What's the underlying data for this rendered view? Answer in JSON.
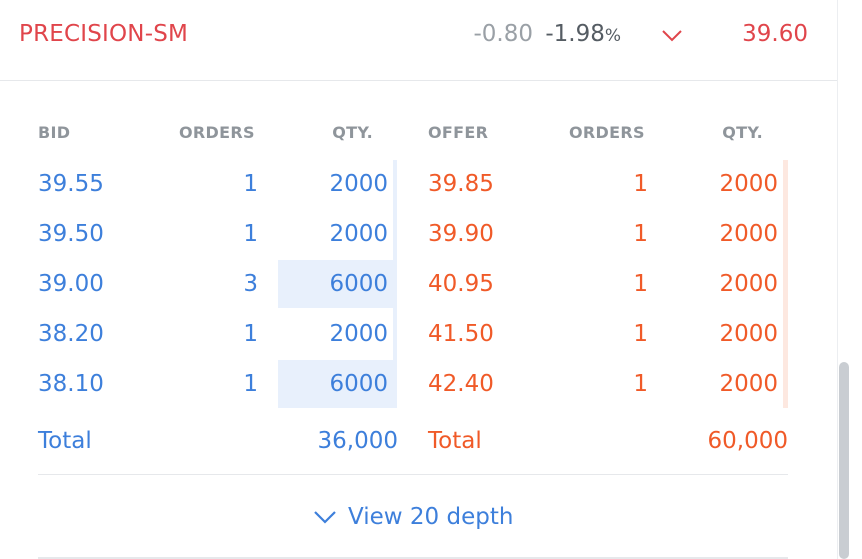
{
  "header": {
    "symbol": "PRECISION-SM",
    "change": "-0.80",
    "change_pct_value": "-1.98",
    "change_pct_unit": "%",
    "price": "39.60",
    "direction_icon": "chevron-down-icon"
  },
  "columns": {
    "bid": "BID",
    "bid_orders": "ORDERS",
    "bid_qty": "QTY.",
    "offer": "OFFER",
    "offer_orders": "ORDERS",
    "offer_qty": "QTY."
  },
  "rows": [
    {
      "bid": "39.55",
      "bid_orders": "1",
      "bid_qty": "2000",
      "bid_depth_fraction": 0.0,
      "offer": "39.85",
      "offer_orders": "1",
      "offer_qty": "2000"
    },
    {
      "bid": "39.50",
      "bid_orders": "1",
      "bid_qty": "2000",
      "bid_depth_fraction": 0.0,
      "offer": "39.90",
      "offer_orders": "1",
      "offer_qty": "2000"
    },
    {
      "bid": "39.00",
      "bid_orders": "3",
      "bid_qty": "6000",
      "bid_depth_fraction": 1.0,
      "offer": "40.95",
      "offer_orders": "1",
      "offer_qty": "2000"
    },
    {
      "bid": "38.20",
      "bid_orders": "1",
      "bid_qty": "2000",
      "bid_depth_fraction": 0.0,
      "offer": "41.50",
      "offer_orders": "1",
      "offer_qty": "2000"
    },
    {
      "bid": "38.10",
      "bid_orders": "1",
      "bid_qty": "6000",
      "bid_depth_fraction": 1.0,
      "offer": "42.40",
      "offer_orders": "1",
      "offer_qty": "2000"
    }
  ],
  "totals": {
    "bid_label": "Total",
    "bid_total": "36,000",
    "offer_label": "Total",
    "offer_total": "60,000"
  },
  "footer": {
    "view_depth_label": "View 20 depth",
    "view_depth_icon": "chevron-down-icon"
  },
  "colors": {
    "bid": "#3d7fdb",
    "offer": "#f05a28",
    "symbol": "#e0454b"
  }
}
